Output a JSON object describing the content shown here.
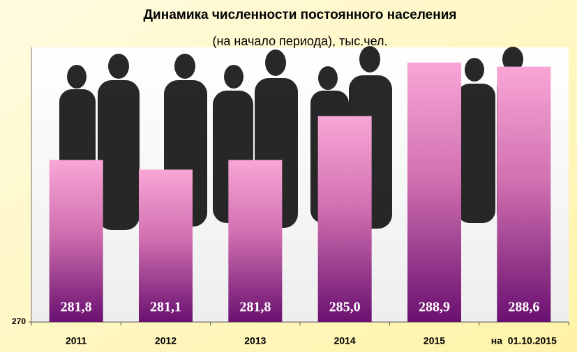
{
  "chart_data": {
    "type": "bar",
    "title": "Динамика численности постоянного населения",
    "subtitle": "(на начало периода), тыс.чел.",
    "categories": [
      "2011",
      "2012",
      "2013",
      "2014",
      "2015",
      "на  01.10.2015"
    ],
    "values": [
      281.8,
      281.1,
      281.8,
      285.0,
      288.9,
      288.6
    ],
    "value_labels": [
      "281,8",
      "281,1",
      "281,8",
      "285,0",
      "288,9",
      "288,6"
    ],
    "color": "#f48fc8",
    "ylim": [
      270,
      290
    ],
    "yticks": [
      270
    ],
    "grid": false
  }
}
